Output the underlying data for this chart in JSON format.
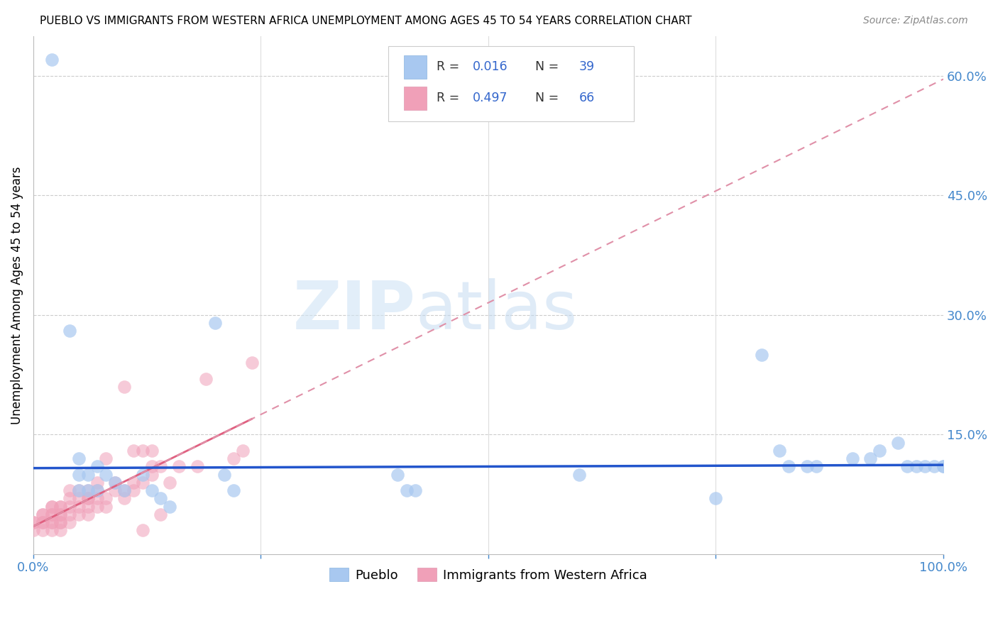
{
  "title": "PUEBLO VS IMMIGRANTS FROM WESTERN AFRICA UNEMPLOYMENT AMONG AGES 45 TO 54 YEARS CORRELATION CHART",
  "source": "Source: ZipAtlas.com",
  "ylabel": "Unemployment Among Ages 45 to 54 years",
  "xlim": [
    0,
    1.0
  ],
  "ylim": [
    0,
    0.65
  ],
  "pueblo_color": "#a8c8f0",
  "western_africa_color": "#f0a0b8",
  "pueblo_line_color": "#2255cc",
  "western_africa_line_color": "#e06080",
  "legend_r1": "0.016",
  "legend_n1": "39",
  "legend_r2": "0.497",
  "legend_n2": "66",
  "grid_color": "#cccccc",
  "text_color": "#4488cc",
  "pueblo_x": [
    0.02,
    0.04,
    0.05,
    0.05,
    0.05,
    0.06,
    0.06,
    0.07,
    0.07,
    0.08,
    0.09,
    0.1,
    0.12,
    0.13,
    0.14,
    0.15,
    0.2,
    0.21,
    0.22,
    0.4,
    0.41,
    0.42,
    0.6,
    0.75,
    0.8,
    0.82,
    0.83,
    0.85,
    0.86,
    0.9,
    0.92,
    0.93,
    0.95,
    0.96,
    0.97,
    0.98,
    0.99,
    1.0,
    1.0
  ],
  "pueblo_y": [
    0.62,
    0.28,
    0.12,
    0.1,
    0.08,
    0.1,
    0.08,
    0.11,
    0.08,
    0.1,
    0.09,
    0.08,
    0.1,
    0.08,
    0.07,
    0.06,
    0.29,
    0.1,
    0.08,
    0.1,
    0.08,
    0.08,
    0.1,
    0.07,
    0.25,
    0.13,
    0.11,
    0.11,
    0.11,
    0.12,
    0.12,
    0.13,
    0.14,
    0.11,
    0.11,
    0.11,
    0.11,
    0.11,
    0.11
  ],
  "western_africa_x": [
    0.0,
    0.0,
    0.0,
    0.01,
    0.01,
    0.01,
    0.01,
    0.01,
    0.02,
    0.02,
    0.02,
    0.02,
    0.02,
    0.02,
    0.02,
    0.03,
    0.03,
    0.03,
    0.03,
    0.03,
    0.03,
    0.03,
    0.04,
    0.04,
    0.04,
    0.04,
    0.04,
    0.05,
    0.05,
    0.05,
    0.05,
    0.06,
    0.06,
    0.06,
    0.06,
    0.06,
    0.07,
    0.07,
    0.07,
    0.07,
    0.08,
    0.08,
    0.08,
    0.09,
    0.09,
    0.1,
    0.1,
    0.11,
    0.11,
    0.12,
    0.12,
    0.13,
    0.13,
    0.14,
    0.15,
    0.16,
    0.18,
    0.19,
    0.22,
    0.23,
    0.24,
    0.1,
    0.11,
    0.12,
    0.13,
    0.14
  ],
  "western_africa_y": [
    0.03,
    0.04,
    0.04,
    0.03,
    0.04,
    0.04,
    0.05,
    0.05,
    0.03,
    0.04,
    0.04,
    0.05,
    0.05,
    0.06,
    0.06,
    0.03,
    0.04,
    0.04,
    0.05,
    0.05,
    0.06,
    0.06,
    0.04,
    0.05,
    0.06,
    0.07,
    0.08,
    0.05,
    0.06,
    0.07,
    0.08,
    0.05,
    0.06,
    0.07,
    0.07,
    0.08,
    0.06,
    0.07,
    0.08,
    0.09,
    0.06,
    0.07,
    0.12,
    0.08,
    0.09,
    0.07,
    0.08,
    0.09,
    0.13,
    0.09,
    0.13,
    0.1,
    0.13,
    0.11,
    0.09,
    0.11,
    0.11,
    0.22,
    0.12,
    0.13,
    0.24,
    0.21,
    0.08,
    0.03,
    0.11,
    0.05
  ]
}
